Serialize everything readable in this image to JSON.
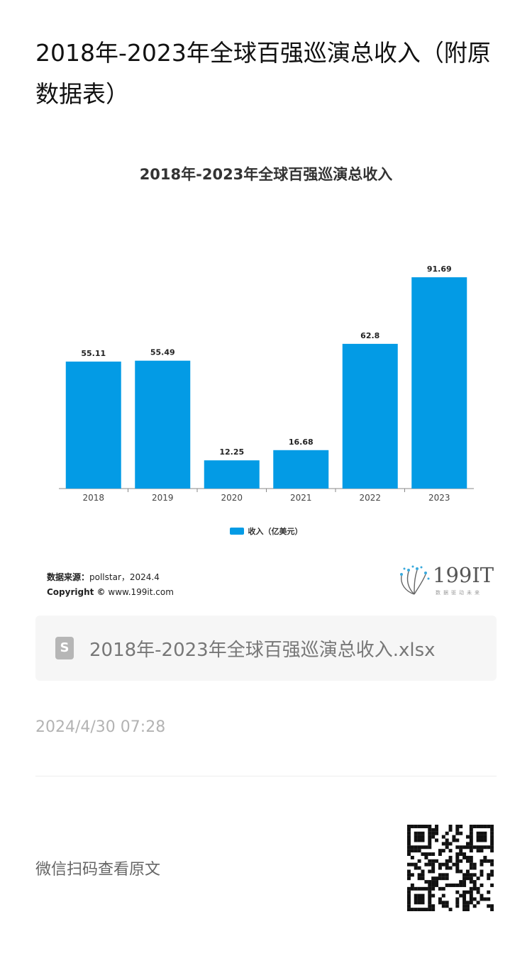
{
  "article": {
    "title": "2018年-2023年全球百强巡演总收入（附原数据表）",
    "file_name": "2018年-2023年全球百强巡演总收入.xlsx",
    "file_icon_letter": "S",
    "post_time": "2024/4/30 07:28",
    "scan_text": "微信扫码查看原文"
  },
  "source": {
    "label": "数据来源：",
    "value": "pollstar，2024.4",
    "copyright_label": "Copyright ©",
    "copyright_value": "www.199it.com"
  },
  "logo": {
    "text": "199IT",
    "subtitle": "数据驱动未来"
  },
  "colors": {
    "bar": "#039be5",
    "axis": "#888888"
  },
  "chart_data": {
    "type": "bar",
    "title": "2018年-2023年全球百强巡演总收入",
    "categories": [
      "2018",
      "2019",
      "2020",
      "2021",
      "2022",
      "2023"
    ],
    "series": [
      {
        "name": "收入（亿美元）",
        "values": [
          55.11,
          55.49,
          12.25,
          16.68,
          62.8,
          91.69
        ]
      }
    ],
    "value_labels": [
      "55.11",
      "55.49",
      "12.25",
      "16.68",
      "62.8",
      "91.69"
    ],
    "ylim": [
      0,
      100
    ],
    "grid": false,
    "legend": "bottom-center"
  }
}
